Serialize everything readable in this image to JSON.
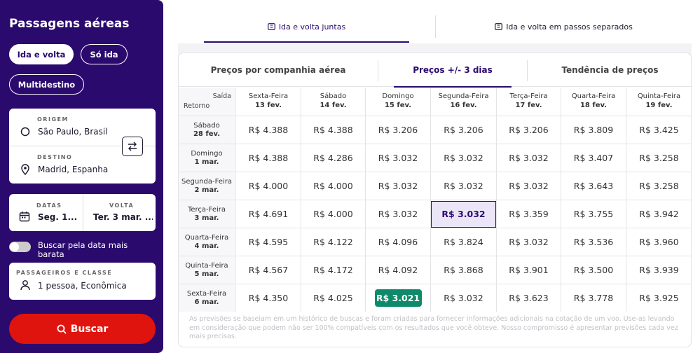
{
  "sidebar": {
    "title": "Passagens aéreas",
    "trip_types": [
      "Ida e volta",
      "Só ida",
      "Multidestino"
    ],
    "origin": {
      "label": "ORIGEM",
      "value": "São Paulo, Brasil"
    },
    "destination": {
      "label": "DESTINO",
      "value": "Madrid, Espanha"
    },
    "dates": {
      "label": "DATAS",
      "value": "Seg. 1..."
    },
    "return": {
      "label": "VOLTA",
      "value": "Ter. 3 mar. ..."
    },
    "cheapest_toggle": "Buscar pela data mais barata",
    "passengers": {
      "label": "PASSAGEIROS E CLASSE",
      "value": "1 pessoa, Econômica"
    },
    "search_label": "Buscar"
  },
  "top_tabs": [
    "Ida e volta juntas",
    "Ida e volta em passos separados"
  ],
  "sub_tabs": [
    "Preços por companhia aérea",
    "Preços +/- 3 dias",
    "Tendência de preços"
  ],
  "table": {
    "corner_top": "Saída",
    "corner_bottom": "Retorno",
    "columns": [
      {
        "day": "Sexta-Feira",
        "date": "13 fev."
      },
      {
        "day": "Sábado",
        "date": "14 fev."
      },
      {
        "day": "Domingo",
        "date": "15 fev."
      },
      {
        "day": "Segunda-Feira",
        "date": "16 fev."
      },
      {
        "day": "Terça-Feira",
        "date": "17 fev."
      },
      {
        "day": "Quarta-Feira",
        "date": "18 fev."
      },
      {
        "day": "Quinta-Feira",
        "date": "19 fev."
      }
    ],
    "rows": [
      {
        "day": "Sábado",
        "date": "28 fev.",
        "prices": [
          "R$ 4.388",
          "R$ 4.388",
          "R$ 3.206",
          "R$ 3.206",
          "R$ 3.206",
          "R$ 3.809",
          "R$ 3.425"
        ]
      },
      {
        "day": "Domingo",
        "date": "1 mar.",
        "prices": [
          "R$ 4.388",
          "R$ 4.286",
          "R$ 3.032",
          "R$ 3.032",
          "R$ 3.032",
          "R$ 3.407",
          "R$ 3.258"
        ]
      },
      {
        "day": "Segunda-Feira",
        "date": "2 mar.",
        "prices": [
          "R$ 4.000",
          "R$ 4.000",
          "R$ 3.032",
          "R$ 3.032",
          "R$ 3.032",
          "R$ 3.643",
          "R$ 3.258"
        ]
      },
      {
        "day": "Terça-Feira",
        "date": "3 mar.",
        "prices": [
          "R$ 4.691",
          "R$ 4.000",
          "R$ 3.032",
          "R$ 3.032",
          "R$ 3.359",
          "R$ 3.755",
          "R$ 3.942"
        ]
      },
      {
        "day": "Quarta-Feira",
        "date": "4 mar.",
        "prices": [
          "R$ 4.595",
          "R$ 4.122",
          "R$ 4.096",
          "R$ 3.824",
          "R$ 3.032",
          "R$ 3.536",
          "R$ 3.960"
        ]
      },
      {
        "day": "Quinta-Feira",
        "date": "5 mar.",
        "prices": [
          "R$ 4.567",
          "R$ 4.172",
          "R$ 4.092",
          "R$ 3.868",
          "R$ 3.901",
          "R$ 3.500",
          "R$ 3.939"
        ]
      },
      {
        "day": "Sexta-Feira",
        "date": "6 mar.",
        "prices": [
          "R$ 4.350",
          "R$ 4.025",
          "R$ 3.021",
          "R$ 3.032",
          "R$ 3.623",
          "R$ 3.778",
          "R$ 3.925"
        ]
      }
    ],
    "selected": {
      "row": 3,
      "col": 3
    },
    "cheapest": {
      "row": 6,
      "col": 2
    }
  },
  "note": "As previsões se baseiam em um histórico de buscas e foram criadas para fornecer informações adicionais na cotação de um voo. Use-as levando em consideração que podem não ser 100% compatíveis com os resultados que você obteve. Nosso compromisso é apresentar previsões cada vez mais precisas.",
  "colors": {
    "brand": "#2b0a6e",
    "search": "#e0140e",
    "cheapest": "#0e8a6a"
  }
}
